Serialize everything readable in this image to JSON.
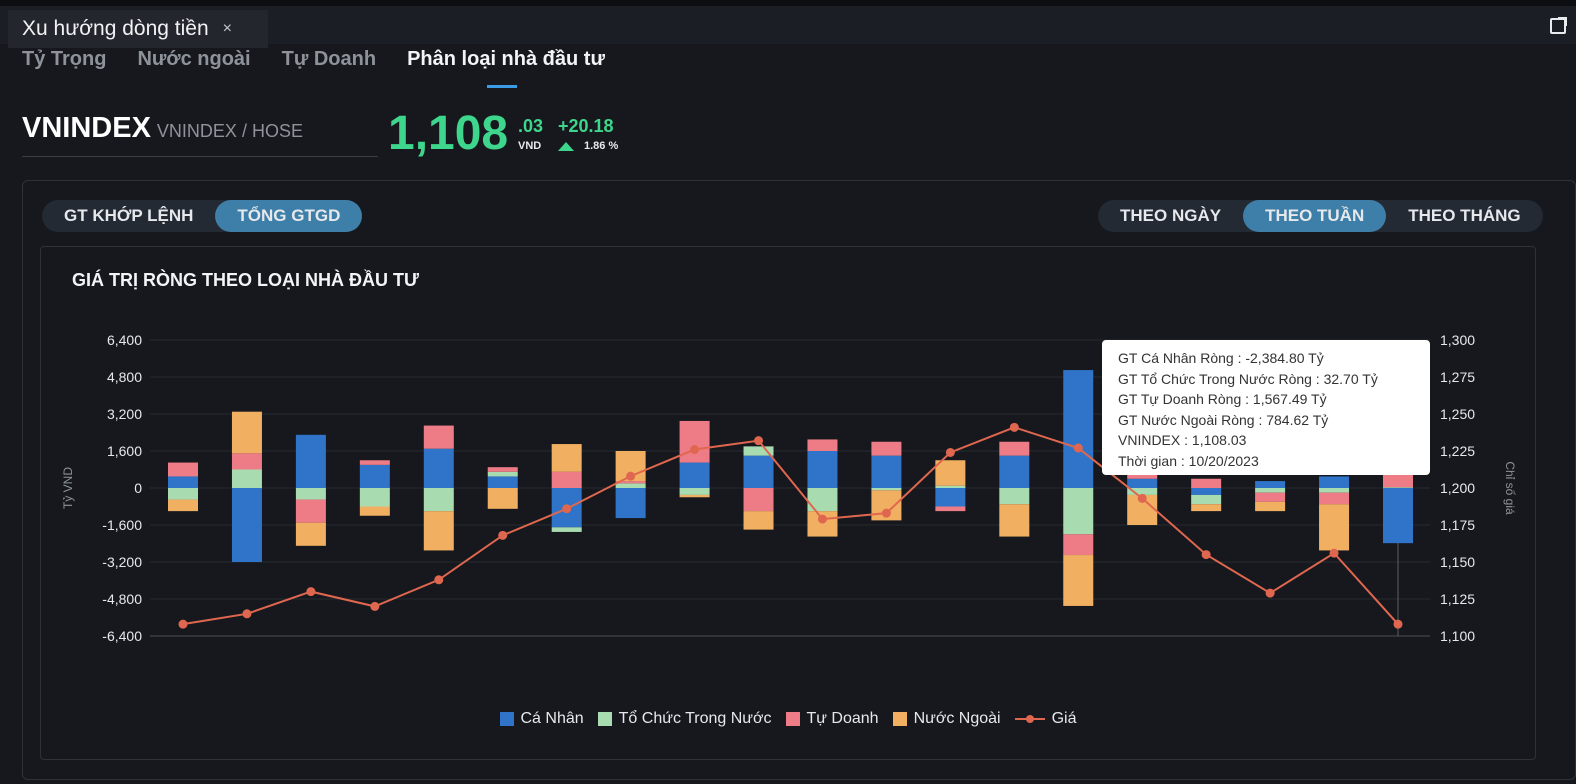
{
  "header": {
    "tab_title": "Xu hướng dòng tiền",
    "close_glyph": "×"
  },
  "subtabs": [
    "Tỷ Trọng",
    "Nước ngoài",
    "Tự Doanh",
    "Phân loại nhà đầu tư"
  ],
  "index": {
    "symbol": "VNINDEX",
    "exchange": "VNINDEX / HOSE",
    "price_int": "1,108",
    "price_dec": ".03",
    "unit": "VND",
    "change": "+20.18",
    "change_pct": "1.86 %"
  },
  "toggle_left": [
    "GT KHỚP LỆNH",
    "TỔNG GTGD"
  ],
  "toggle_right": [
    "THEO NGÀY",
    "THEO TUẦN",
    "THEO THÁNG"
  ],
  "tooltip": {
    "lines": [
      "GT Cá Nhân Ròng  : -2,384.80 Tỷ",
      "GT Tổ Chức Trong Nước Ròng : 32.70 Tỷ",
      "GT Tự Doanh Ròng : 1,567.49 Tỷ",
      "GT Nước Ngoài Ròng : 784.62 Tỷ",
      "VNINDEX : 1,108.03",
      "Thời gian : 10/20/2023"
    ]
  },
  "colors": {
    "ca_nhan": "#2f74c8",
    "to_chuc": "#a8dbb0",
    "tu_doanh": "#ee7c86",
    "nuoc_ngoai": "#f1b061",
    "gia": "#e0674f"
  },
  "chart_data": {
    "type": "bar",
    "title": "GIÁ TRỊ RÒNG THEO LOẠI NHÀ ĐẦU TƯ",
    "ylabel": "Tỷ VND",
    "y2label": "Chỉ số giá",
    "ylim": [
      -6400,
      6400
    ],
    "y2lim": [
      1100,
      1300
    ],
    "yticks": [
      "6,400",
      "4,800",
      "3,200",
      "1,600",
      "0",
      "-1,600",
      "-3,200",
      "-4,800",
      "-6,400"
    ],
    "y2ticks": [
      "1,300",
      "1,275",
      "1,250",
      "1,225",
      "1,200",
      "1,175",
      "1,150",
      "1,125",
      "1,100"
    ],
    "legend_position": "bottom",
    "series": [
      {
        "name": "Cá Nhân",
        "values": [
          500,
          -3200,
          2300,
          1000,
          1700,
          500,
          -1700,
          -1300,
          1100,
          1400,
          1600,
          1400,
          -800,
          1400,
          5100,
          400,
          -300,
          300,
          500,
          -2385
        ]
      },
      {
        "name": "Tổ Chức Trong Nước",
        "values": [
          -500,
          800,
          -500,
          -800,
          -1000,
          200,
          -200,
          200,
          -300,
          400,
          -1000,
          -100,
          100,
          -700,
          -2000,
          -300,
          -400,
          -200,
          -200,
          33
        ]
      },
      {
        "name": "Tự Doanh",
        "values": [
          600,
          700,
          -1000,
          200,
          1000,
          200,
          700,
          100,
          1800,
          -1000,
          500,
          600,
          -200,
          600,
          -900,
          300,
          400,
          -400,
          -500,
          1567
        ]
      },
      {
        "name": "Nước Ngoài",
        "values": [
          -500,
          1800,
          -1000,
          -400,
          -1700,
          -900,
          1200,
          1300,
          -100,
          -800,
          -1100,
          -1300,
          1100,
          -1400,
          -2200,
          -1300,
          -300,
          -400,
          -2000,
          785
        ]
      },
      {
        "name": "Giá",
        "values": [
          1108,
          1115,
          1130,
          1120,
          1138,
          1168,
          1186,
          1208,
          1226,
          1232,
          1179,
          1183,
          1224,
          1241,
          1227,
          1193,
          1155,
          1129,
          1156,
          1108
        ]
      }
    ]
  }
}
